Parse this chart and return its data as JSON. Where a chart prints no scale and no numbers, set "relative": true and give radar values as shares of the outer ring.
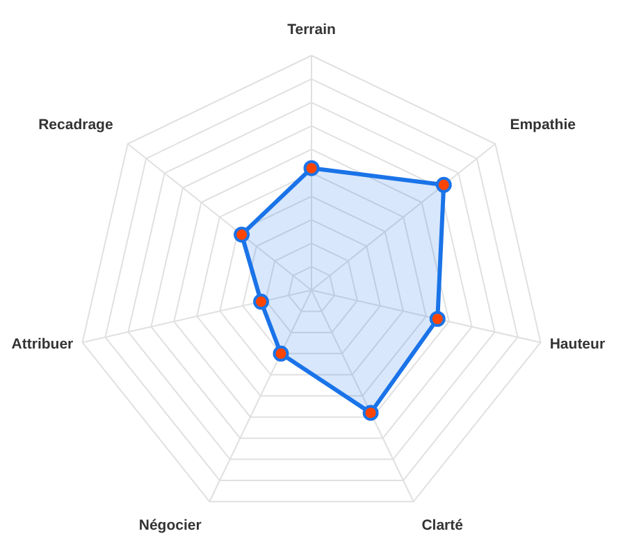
{
  "chart_data": {
    "type": "radar",
    "relative": true,
    "grid": true,
    "marker": "circle",
    "categories": [
      "Terrain",
      "Empathie",
      "Hauteur",
      "Clarté",
      "Négocier",
      "Attribuer",
      "Recadrage"
    ],
    "series": [
      {
        "color": "#1a73e8",
        "values": [
          0.52,
          0.72,
          0.55,
          0.58,
          0.3,
          0.22,
          0.38
        ]
      }
    ]
  }
}
